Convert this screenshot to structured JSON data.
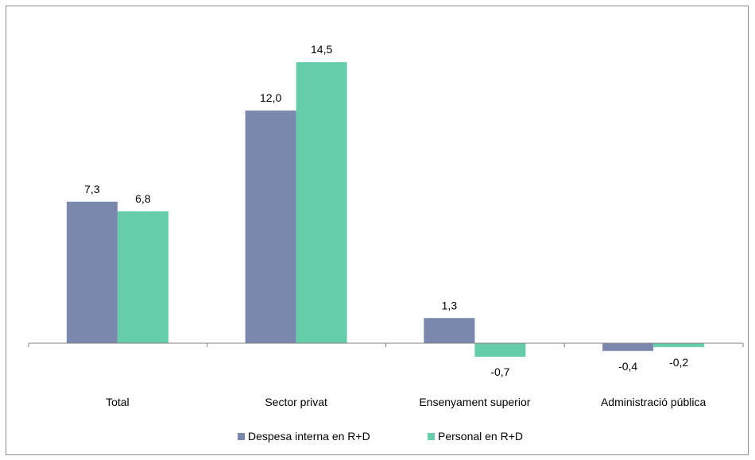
{
  "chart_data": {
    "type": "bar",
    "categories": [
      "Total",
      "Sector privat",
      "Ensenyament superior",
      "Administració pública"
    ],
    "series": [
      {
        "name": "Despesa interna en R+D",
        "values": [
          7.3,
          12.0,
          1.3,
          -0.4
        ],
        "labels": [
          "7,3",
          "12,0",
          "1,3",
          "-0,4"
        ],
        "color": "#7b88ad"
      },
      {
        "name": "Personal en R+D",
        "values": [
          6.8,
          14.5,
          -0.7,
          -0.2
        ],
        "labels": [
          "6,8",
          "14,5",
          "-0,7",
          "-0,2"
        ],
        "color": "#66cdaa"
      }
    ],
    "ylim": [
      -1.5,
      17.5
    ],
    "grid": false,
    "legend_position": "bottom",
    "axis_color": "#7f7f7f",
    "frame_color": "#8c8c8c"
  }
}
